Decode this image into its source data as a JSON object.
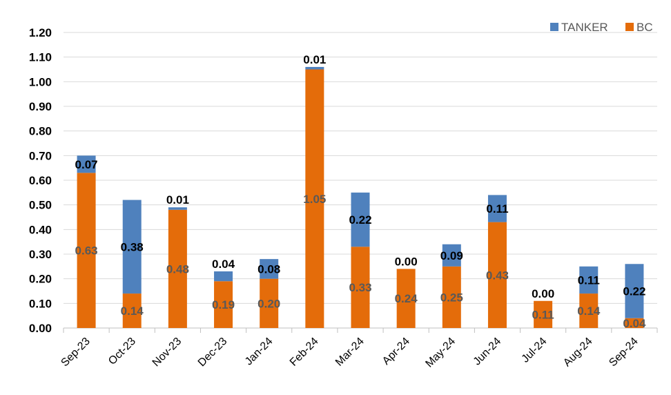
{
  "chart_data": {
    "type": "bar",
    "stacked": true,
    "categories": [
      "Sep-23",
      "Oct-23",
      "Nov-23",
      "Dec-23",
      "Jan-24",
      "Feb-24",
      "Mar-24",
      "Apr-24",
      "May-24",
      "Jun-24",
      "Jul-24",
      "Aug-24",
      "Sep-24"
    ],
    "series": [
      {
        "name": "BC",
        "color": "#E46C0A",
        "values": [
          0.63,
          0.14,
          0.48,
          0.19,
          0.2,
          1.05,
          0.33,
          0.24,
          0.25,
          0.43,
          0.11,
          0.14,
          0.04
        ],
        "labels": [
          "0.63",
          "0.14",
          "0.48",
          "0.19",
          "0.20",
          "1.05",
          "0.33",
          "0.24",
          "0.25",
          "0.43",
          "0.11",
          "0.14",
          "0.04"
        ]
      },
      {
        "name": "TANKER",
        "color": "#4F81BD",
        "values": [
          0.07,
          0.38,
          0.01,
          0.04,
          0.08,
          0.01,
          0.22,
          0.0,
          0.09,
          0.11,
          0.0,
          0.11,
          0.22
        ],
        "labels": [
          "0.07",
          "0.38",
          "0.01",
          "0.04",
          "0.08",
          "0.01",
          "0.22",
          "0.00",
          "0.09",
          "0.11",
          "0.00",
          "0.11",
          "0.22"
        ]
      }
    ],
    "yticks": [
      "0.00",
      "0.10",
      "0.20",
      "0.30",
      "0.40",
      "0.50",
      "0.60",
      "0.70",
      "0.80",
      "0.90",
      "1.00",
      "1.10",
      "1.20"
    ],
    "ylim": [
      0,
      1.2
    ],
    "grid": true,
    "legend": {
      "position": "top-right",
      "entries": [
        "TANKER",
        "BC"
      ]
    },
    "title": "",
    "xlabel": "",
    "ylabel": ""
  }
}
